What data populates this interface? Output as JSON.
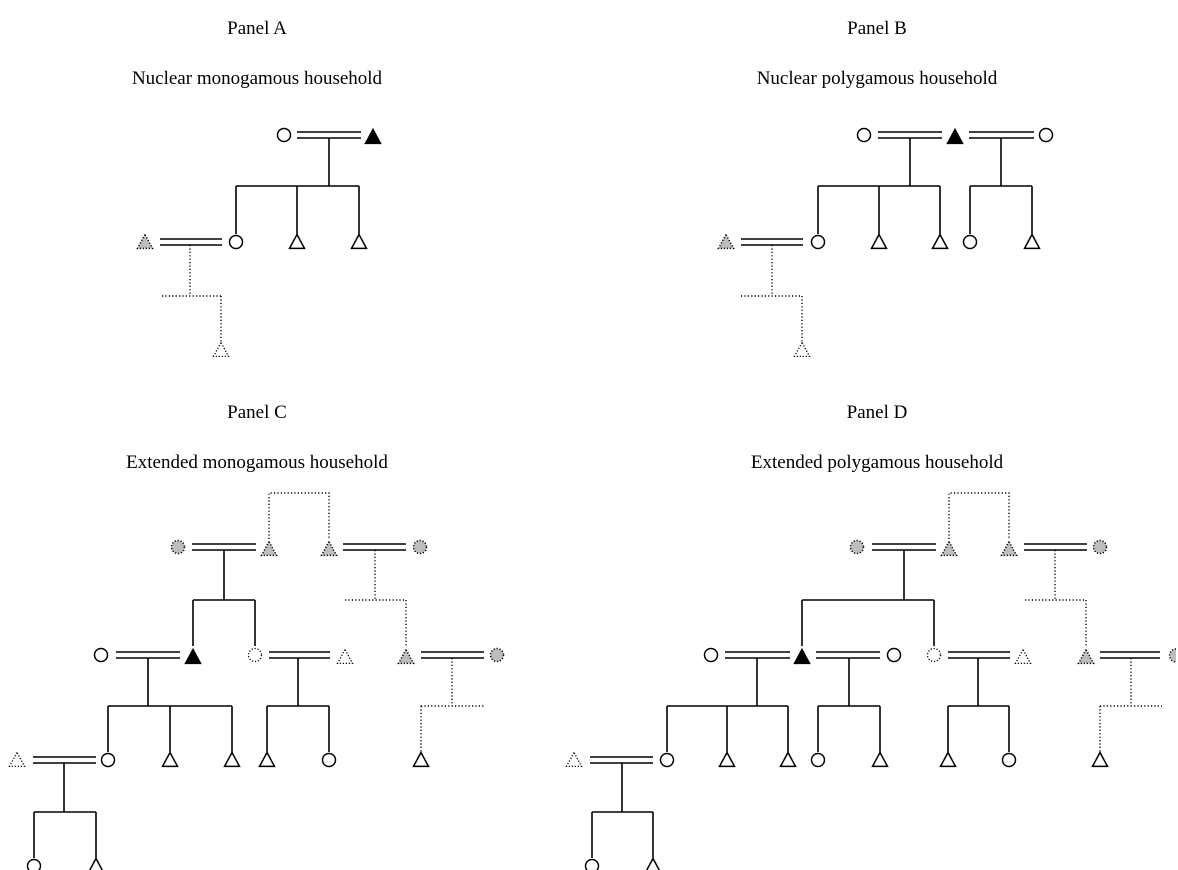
{
  "panels": [
    {
      "id": "A",
      "label": "Panel A",
      "title": "Nuclear monogamous household"
    },
    {
      "id": "B",
      "label": "Panel B",
      "title": "Nuclear polygamous household"
    },
    {
      "id": "C",
      "label": "Panel C",
      "title": "Extended monogamous household"
    },
    {
      "id": "D",
      "label": "Panel D",
      "title": "Extended polygamous household"
    }
  ],
  "symbols": {
    "male": "triangle",
    "female": "circle"
  },
  "colors": {
    "ink": "#000000",
    "grey_fill": "#bdbdbd",
    "white": "#ffffff"
  }
}
